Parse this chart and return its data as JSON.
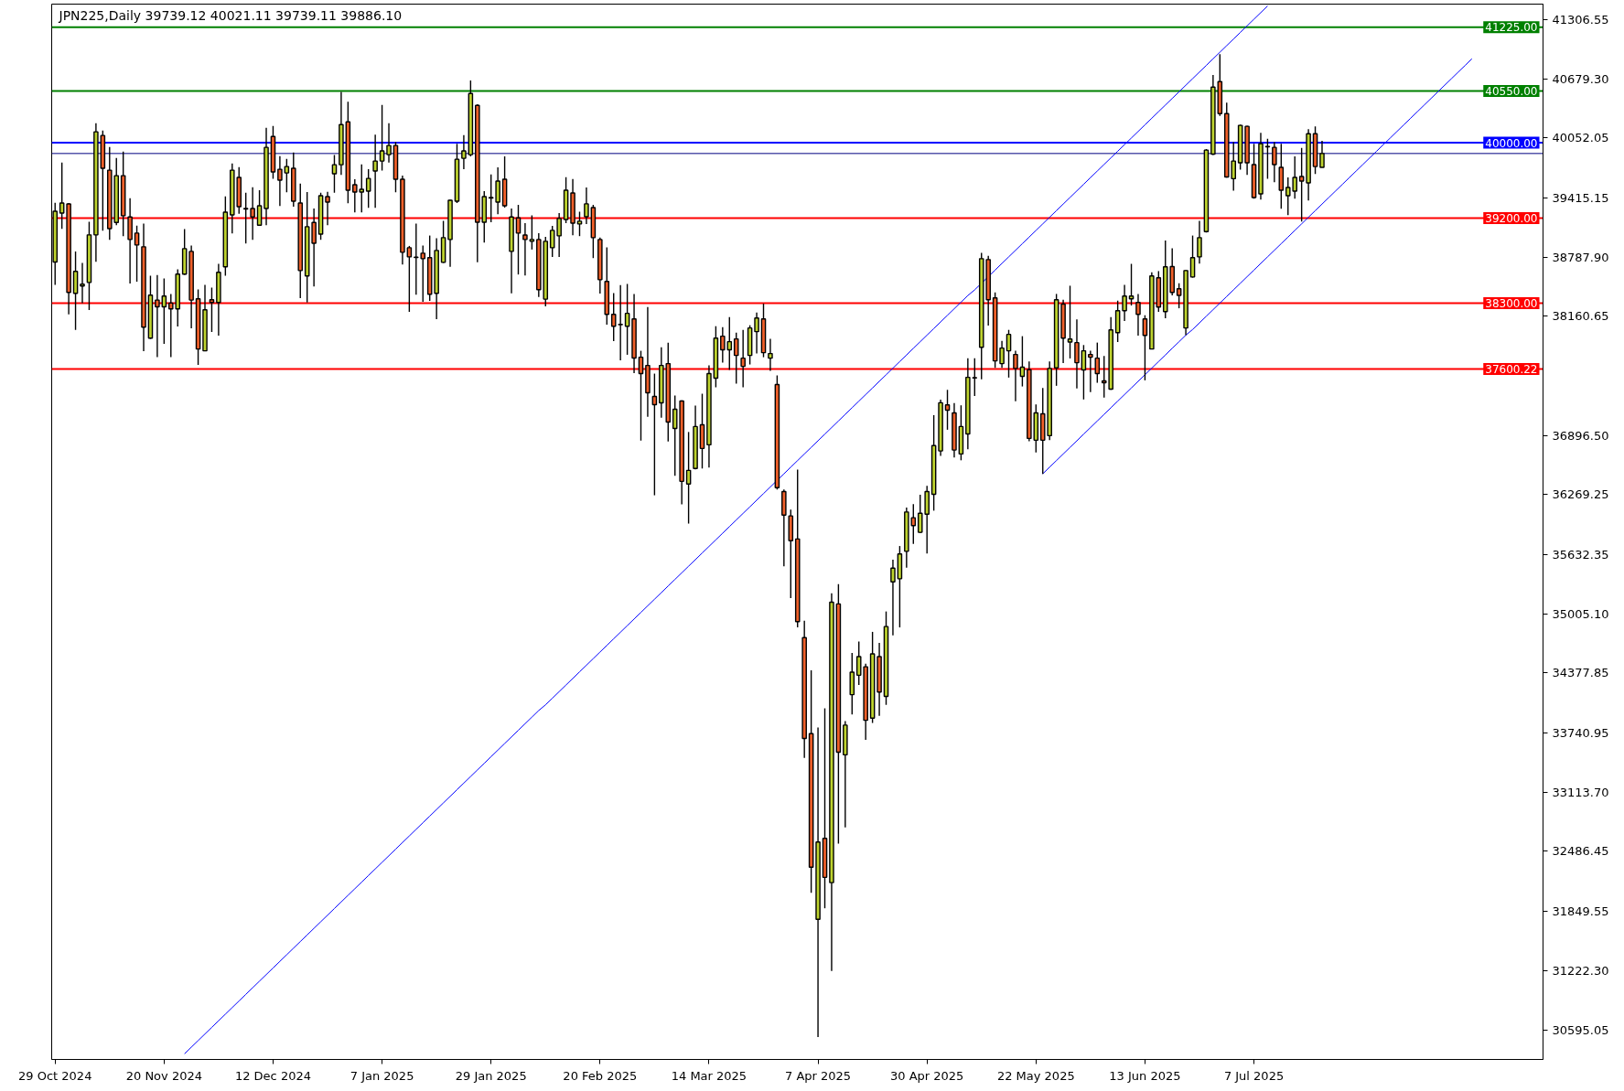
{
  "chart_data": {
    "type": "candlestick",
    "title": "JPN225,Daily 39739.12 40021.11 39739.11 39886.10",
    "categories": [
      "29 Oct 2024",
      null,
      null,
      null,
      null,
      null,
      null,
      null,
      null,
      null,
      null,
      null,
      null,
      null,
      null,
      null,
      "20 Nov 2024",
      null,
      null,
      null,
      null,
      null,
      null,
      null,
      null,
      null,
      null,
      null,
      null,
      null,
      null,
      null,
      "12 Dec 2024",
      null,
      null,
      null,
      null,
      null,
      null,
      null,
      null,
      null,
      null,
      null,
      null,
      null,
      null,
      null,
      "7 Jan 2025",
      null,
      null,
      null,
      null,
      null,
      null,
      null,
      null,
      null,
      null,
      null,
      null,
      null,
      null,
      null,
      "29 Jan 2025",
      null,
      null,
      null,
      null,
      null,
      null,
      null,
      null,
      null,
      null,
      null,
      null,
      null,
      null,
      null,
      "20 Feb 2025",
      null,
      null,
      null,
      null,
      null,
      null,
      null,
      null,
      null,
      null,
      null,
      null,
      null,
      null,
      null,
      "14 Mar 2025",
      null,
      null,
      null,
      null,
      null,
      null,
      null,
      null,
      null,
      null,
      null,
      null,
      null,
      null,
      null,
      "7 Apr 2025",
      null,
      null,
      null,
      null,
      null,
      null,
      null,
      null,
      null,
      null,
      null,
      null,
      null,
      null,
      null,
      "30 Apr 2025",
      null,
      null,
      null,
      null,
      null,
      null,
      null,
      null,
      null,
      null,
      null,
      null,
      null,
      null,
      null,
      "22 May 2025",
      null,
      null,
      null,
      null,
      null,
      null,
      null,
      null,
      null,
      null,
      null,
      null,
      null,
      null,
      null,
      "13 Jun 2025",
      null,
      null,
      null,
      null,
      null,
      null,
      null,
      null,
      null,
      null,
      null,
      null,
      null,
      null,
      null,
      "7 Jul 2025",
      null,
      null,
      null,
      null,
      null,
      null,
      null,
      null,
      null,
      null,
      null,
      null,
      null,
      null,
      null,
      null,
      null,
      null,
      null,
      null,
      null,
      null,
      null,
      null,
      null,
      null,
      null,
      null,
      null,
      null,
      null,
      null
    ],
    "ohlc": [
      [
        38735,
        39364,
        38493,
        39274
      ],
      [
        39255,
        39790,
        39087,
        39361
      ],
      [
        39351,
        39360,
        38181,
        38413
      ],
      [
        38403,
        38848,
        38016,
        38636
      ],
      [
        38481,
        38726,
        38300,
        38500
      ],
      [
        38519,
        39161,
        38226,
        39023
      ],
      [
        39023,
        40206,
        38739,
        40116
      ],
      [
        40077,
        40129,
        39068,
        39729
      ],
      [
        39709,
        39955,
        38971,
        39090
      ],
      [
        39155,
        39838,
        39126,
        39651
      ],
      [
        39651,
        39906,
        39010,
        39226
      ],
      [
        39213,
        39413,
        38507,
        38974
      ],
      [
        39042,
        39122,
        38526,
        38916
      ],
      [
        38897,
        39142,
        37791,
        38045
      ],
      [
        37929,
        38590,
        37920,
        38384
      ],
      [
        38332,
        38597,
        37726,
        38261
      ],
      [
        38261,
        38561,
        37868,
        38374
      ],
      [
        38300,
        38397,
        37726,
        38239
      ],
      [
        38239,
        38658,
        38052,
        38607
      ],
      [
        38607,
        39084,
        38600,
        38877
      ],
      [
        38848,
        38910,
        38032,
        38332
      ],
      [
        38345,
        38445,
        37645,
        37813
      ],
      [
        37794,
        38494,
        37790,
        38229
      ],
      [
        38336,
        38465,
        37994,
        38307
      ],
      [
        38307,
        38716,
        37955,
        38626
      ],
      [
        38684,
        39432,
        38590,
        39264
      ],
      [
        39235,
        39780,
        39039,
        39709
      ],
      [
        39632,
        39742,
        39248,
        39322
      ],
      [
        39303,
        39471,
        38932,
        39297
      ],
      [
        39303,
        39529,
        38971,
        39213
      ],
      [
        39126,
        39497,
        39120,
        39332
      ],
      [
        39303,
        40158,
        39126,
        39951
      ],
      [
        40067,
        40177,
        39619,
        39690
      ],
      [
        39719,
        39858,
        39329,
        39603
      ],
      [
        39680,
        39829,
        39474,
        39748
      ],
      [
        39729,
        39896,
        39322,
        39380
      ],
      [
        39361,
        39568,
        38352,
        38645
      ],
      [
        38587,
        39477,
        38307,
        39110
      ],
      [
        39155,
        39303,
        38477,
        38935
      ],
      [
        39032,
        39471,
        38971,
        39438
      ],
      [
        39429,
        39480,
        39126,
        39371
      ],
      [
        39671,
        39871,
        39471,
        39767
      ],
      [
        39767,
        40538,
        39658,
        40193
      ],
      [
        40222,
        40435,
        39358,
        39497
      ],
      [
        39555,
        39613,
        39261,
        39477
      ],
      [
        39477,
        39771,
        39261,
        39506
      ],
      [
        39487,
        39719,
        39310,
        39622
      ],
      [
        39700,
        40087,
        39310,
        39806
      ],
      [
        39806,
        40400,
        39706,
        39913
      ],
      [
        39874,
        40206,
        39790,
        39971
      ],
      [
        39971,
        40009,
        39474,
        39613
      ],
      [
        39613,
        39651,
        38710,
        38839
      ],
      [
        38887,
        38906,
        38207,
        38790
      ],
      [
        38787,
        39142,
        38390,
        38784
      ],
      [
        38829,
        38910,
        38313,
        38771
      ],
      [
        38781,
        39016,
        38323,
        38394
      ],
      [
        38403,
        38987,
        38129,
        38858
      ],
      [
        38732,
        39171,
        38725,
        38994
      ],
      [
        38974,
        39395,
        38684,
        39390
      ],
      [
        39380,
        39990,
        39361,
        39825
      ],
      [
        39835,
        40080,
        39719,
        39913
      ],
      [
        39874,
        40661,
        39855,
        40522
      ],
      [
        40396,
        40409,
        38732,
        39158
      ],
      [
        39158,
        39487,
        38942,
        39429
      ],
      [
        39419,
        39664,
        39158,
        39413
      ],
      [
        39371,
        39738,
        39242,
        39593
      ],
      [
        39613,
        39855,
        39313,
        39332
      ],
      [
        38848,
        39303,
        38403,
        39213
      ],
      [
        39203,
        39342,
        38603,
        39042
      ],
      [
        39022,
        39148,
        38593,
        38974
      ],
      [
        38955,
        39229,
        38868,
        38974
      ],
      [
        38974,
        39042,
        38364,
        38442
      ],
      [
        38342,
        39003,
        38265,
        38955
      ],
      [
        38887,
        39119,
        38790,
        39071
      ],
      [
        39013,
        39255,
        38790,
        39197
      ],
      [
        39187,
        39635,
        39148,
        39497
      ],
      [
        39468,
        39616,
        39019,
        39148
      ],
      [
        39139,
        39268,
        39010,
        39168
      ],
      [
        39216,
        39526,
        39139,
        39352
      ],
      [
        39313,
        39342,
        38777,
        38994
      ],
      [
        38974,
        38994,
        38400,
        38548
      ],
      [
        38529,
        38890,
        38071,
        38181
      ],
      [
        38181,
        38407,
        37897,
        38055
      ],
      [
        38074,
        38490,
        37694,
        38071
      ],
      [
        38055,
        38503,
        37752,
        38191
      ],
      [
        38132,
        38397,
        37558,
        37717
      ],
      [
        37726,
        37794,
        36842,
        37552
      ],
      [
        37639,
        38258,
        37094,
        37349
      ],
      [
        37310,
        37552,
        36262,
        37223
      ],
      [
        37242,
        37832,
        37084,
        37639
      ],
      [
        37658,
        37881,
        36833,
        37039
      ],
      [
        36971,
        37320,
        36468,
        37175
      ],
      [
        37262,
        37270,
        36165,
        36410
      ],
      [
        36381,
        36933,
        35962,
        36526
      ],
      [
        36546,
        37213,
        36536,
        36991
      ],
      [
        37010,
        37339,
        36546,
        36759
      ],
      [
        36797,
        37639,
        36555,
        37552
      ],
      [
        37504,
        38055,
        37407,
        37929
      ],
      [
        37949,
        38045,
        37668,
        37804
      ],
      [
        37804,
        38152,
        37591,
        37891
      ],
      [
        37920,
        37987,
        37446,
        37745
      ],
      [
        37716,
        38016,
        37407,
        37629
      ],
      [
        37745,
        38065,
        37649,
        38036
      ],
      [
        37997,
        38200,
        37765,
        38142
      ],
      [
        38132,
        38294,
        37726,
        37774
      ],
      [
        37716,
        37920,
        37581,
        37765
      ],
      [
        37436,
        37533,
        36323,
        36343
      ],
      [
        36301,
        36324,
        35508,
        36052
      ],
      [
        36043,
        36109,
        35171,
        35780
      ],
      [
        35799,
        36535,
        34861,
        34922
      ],
      [
        34753,
        34931,
        33477,
        33684
      ],
      [
        33735,
        34406,
        32047,
        32319
      ],
      [
        31766,
        33801,
        30518,
        32586
      ],
      [
        32624,
        34003,
        31883,
        32211
      ],
      [
        32155,
        35222,
        31217,
        35128
      ],
      [
        35110,
        35321,
        32568,
        33538
      ],
      [
        33510,
        33867,
        32741,
        33825
      ],
      [
        34148,
        34589,
        33937,
        34387
      ],
      [
        34354,
        34711,
        34251,
        34551
      ],
      [
        34444,
        34476,
        33670,
        33876
      ],
      [
        33900,
        34814,
        33848,
        34580
      ],
      [
        34551,
        34697,
        33923,
        34176
      ],
      [
        34129,
        35030,
        34040,
        34870
      ],
      [
        35344,
        35579,
        34777,
        35489
      ],
      [
        35377,
        35724,
        34861,
        35640
      ],
      [
        35668,
        36132,
        35494,
        36085
      ],
      [
        36024,
        36169,
        35747,
        35940
      ],
      [
        35869,
        36268,
        35860,
        36071
      ],
      [
        36062,
        36362,
        35644,
        36301
      ],
      [
        36273,
        37112,
        36099,
        36789
      ],
      [
        36732,
        37276,
        36681,
        37243
      ],
      [
        37220,
        37380,
        36957,
        37164
      ],
      [
        37136,
        37239,
        36662,
        36742
      ],
      [
        36700,
        37216,
        36633,
        36991
      ],
      [
        36913,
        37716,
        36749,
        37513
      ],
      [
        37510,
        37716,
        37316,
        37507
      ],
      [
        37832,
        38832,
        37491,
        38771
      ],
      [
        38761,
        38800,
        38061,
        38336
      ],
      [
        38355,
        38413,
        37613,
        37687
      ],
      [
        37658,
        37900,
        37613,
        37823
      ],
      [
        37794,
        38016,
        37510,
        37968
      ],
      [
        37755,
        37794,
        37258,
        37607
      ],
      [
        37523,
        37949,
        37416,
        37620
      ],
      [
        37594,
        37681,
        36836,
        36865
      ],
      [
        36846,
        37226,
        36717,
        37136
      ],
      [
        37126,
        37400,
        36488,
        36846
      ],
      [
        36894,
        37681,
        36846,
        37607
      ],
      [
        37613,
        38397,
        37423,
        38336
      ],
      [
        38290,
        38336,
        37665,
        37929
      ],
      [
        37887,
        38484,
        37713,
        37919
      ],
      [
        37881,
        38126,
        37394,
        37668
      ],
      [
        37591,
        37855,
        37278,
        37794
      ],
      [
        37755,
        37794,
        37355,
        37726
      ],
      [
        37716,
        37881,
        37455,
        37552
      ],
      [
        37475,
        37739,
        37297,
        37455
      ],
      [
        37387,
        38152,
        37380,
        38016
      ],
      [
        37987,
        38326,
        37887,
        38219
      ],
      [
        38219,
        38494,
        38110,
        38374
      ],
      [
        38345,
        38716,
        38274,
        38374
      ],
      [
        38307,
        38397,
        37955,
        38181
      ],
      [
        38132,
        38171,
        37481,
        37958
      ],
      [
        37813,
        38626,
        37810,
        38587
      ],
      [
        38568,
        38639,
        38207,
        38258
      ],
      [
        38210,
        38964,
        38139,
        38684
      ],
      [
        38687,
        38881,
        38381,
        38413
      ],
      [
        38452,
        38510,
        38245,
        38381
      ],
      [
        38036,
        38650,
        37961,
        38645
      ],
      [
        38577,
        39016,
        38570,
        38781
      ],
      [
        38790,
        39171,
        38719,
        38994
      ],
      [
        39058,
        39932,
        39048,
        39922
      ],
      [
        39880,
        40719,
        39870,
        40590
      ],
      [
        40648,
        40938,
        40284,
        40309
      ],
      [
        40309,
        40425,
        39630,
        39638
      ],
      [
        39619,
        40009,
        39493,
        39806
      ],
      [
        39787,
        40193,
        39716,
        40184
      ],
      [
        40174,
        40180,
        39658,
        39787
      ],
      [
        39768,
        39990,
        39406,
        39419
      ],
      [
        39458,
        40106,
        39397,
        39990
      ],
      [
        39961,
        40042,
        39619,
        39958
      ],
      [
        39951,
        40009,
        39581,
        39768
      ],
      [
        39739,
        39990,
        39300,
        39497
      ],
      [
        39439,
        39632,
        39232,
        39526
      ],
      [
        39487,
        39855,
        39406,
        39632
      ],
      [
        39642,
        39945,
        39164,
        39593
      ],
      [
        39574,
        40145,
        39387,
        40096
      ],
      [
        40096,
        40174,
        39668,
        39748
      ],
      [
        39739.12,
        40021.11,
        39739.11,
        39886.1
      ],
      null,
      null,
      null,
      null,
      null,
      null,
      null,
      null,
      null,
      null,
      null,
      null,
      null,
      null,
      null,
      null,
      null,
      null,
      null,
      null,
      null,
      null
    ],
    "colors": [
      "#bed32f",
      "#bed32f",
      "#f0602a",
      "#bed32f",
      "#bed32f",
      "#bed32f",
      "#bed32f",
      "#f0602a",
      "#f0602a",
      "#bed32f",
      "#f0602a",
      "#f0602a",
      "#f0602a",
      "#f0602a",
      "#bed32f",
      "#f0602a",
      "#bed32f",
      "#f0602a",
      "#bed32f",
      "#bed32f",
      "#f0602a",
      "#f0602a",
      "#bed32f",
      "#f0602a",
      "#bed32f",
      "#bed32f",
      "#bed32f",
      "#f0602a",
      "#f0602a",
      "#f0602a",
      "#bed32f",
      "#bed32f",
      "#f0602a",
      "#f0602a",
      "#bed32f",
      "#f0602a",
      "#f0602a",
      "#bed32f",
      "#f0602a",
      "#bed32f",
      "#f0602a",
      "#bed32f",
      "#bed32f",
      "#f0602a",
      "#f0602a",
      "#bed32f",
      "#bed32f",
      "#bed32f",
      "#bed32f",
      "#bed32f",
      "#f0602a",
      "#f0602a",
      "#f0602a",
      "#f0602a",
      "#f0602a",
      "#f0602a",
      "#bed32f",
      "#bed32f",
      "#bed32f",
      "#bed32f",
      "#bed32f",
      "#bed32f",
      "#f0602a",
      "#bed32f",
      "#f0602a",
      "#bed32f",
      "#f0602a",
      "#bed32f",
      "#f0602a",
      "#f0602a",
      "#bed32f",
      "#f0602a",
      "#bed32f",
      "#bed32f",
      "#bed32f",
      "#bed32f",
      "#f0602a",
      "#bed32f",
      "#bed32f",
      "#f0602a",
      "#f0602a",
      "#f0602a",
      "#f0602a",
      "#f0602a",
      "#bed32f",
      "#f0602a",
      "#f0602a",
      "#f0602a",
      "#f0602a",
      "#bed32f",
      "#f0602a",
      "#bed32f",
      "#f0602a",
      "#bed32f",
      "#bed32f",
      "#f0602a",
      "#bed32f",
      "#bed32f",
      "#f0602a",
      "#bed32f",
      "#f0602a",
      "#f0602a",
      "#bed32f",
      "#bed32f",
      "#f0602a",
      "#bed32f",
      "#f0602a",
      "#f0602a",
      "#f0602a",
      "#f0602a",
      "#f0602a",
      "#f0602a",
      "#bed32f",
      "#f0602a",
      "#bed32f",
      "#f0602a",
      "#bed32f",
      "#bed32f",
      "#bed32f",
      "#f0602a",
      "#bed32f",
      "#f0602a",
      "#bed32f",
      "#bed32f",
      "#bed32f",
      "#bed32f",
      "#f0602a",
      "#bed32f",
      "#bed32f",
      "#bed32f",
      "#bed32f",
      "#f0602a",
      "#f0602a",
      "#bed32f",
      "#bed32f",
      "#f0602a",
      "#bed32f",
      "#f0602a",
      "#f0602a",
      "#bed32f",
      "#bed32f",
      "#f0602a",
      "#bed32f",
      "#f0602a",
      "#bed32f",
      "#f0602a",
      "#bed32f",
      "#bed32f",
      "#f0602a",
      "#bed32f",
      "#f0602a",
      "#bed32f",
      "#f0602a",
      "#f0602a",
      "#f0602a",
      "#bed32f",
      "#bed32f",
      "#bed32f",
      "#bed32f",
      "#f0602a",
      "#f0602a",
      "#bed32f",
      "#f0602a",
      "#bed32f",
      "#f0602a",
      "#f0602a",
      "#bed32f",
      "#bed32f",
      "#bed32f",
      "#bed32f",
      "#bed32f",
      "#f0602a",
      "#f0602a",
      "#bed32f",
      "#bed32f",
      "#f0602a",
      "#f0602a",
      "#bed32f",
      "#f0602a",
      "#f0602a",
      "#f0602a",
      "#bed32f",
      "#bed32f",
      "#f0602a",
      "#bed32f",
      "#f0602a",
      "#bed32f",
      null,
      null,
      null,
      null,
      null,
      null,
      null,
      null,
      null,
      null,
      null,
      null,
      null,
      null,
      null,
      null,
      null,
      null,
      null,
      null,
      null,
      null
    ],
    "series": [
      {
        "type": "line",
        "color": "#0000ff",
        "values": [
          null,
          null,
          null,
          null,
          null,
          null,
          null,
          null,
          null,
          null,
          null,
          null,
          null,
          null,
          null,
          null,
          null,
          null,
          null,
          30340,
          30410,
          30480,
          30550,
          30620,
          30690,
          30760,
          30830,
          30900,
          30970,
          31040,
          31110,
          31180,
          31250,
          31320,
          31390,
          31460,
          31530,
          31600,
          31670,
          31740,
          31810,
          31880,
          31950,
          32020,
          32090,
          32160,
          32230,
          32300,
          32370,
          32440,
          32510,
          32580,
          32650,
          32720,
          32790,
          32860,
          32930,
          33000,
          33070,
          33140,
          33210,
          33280,
          33350,
          33420,
          33490,
          33560,
          33630,
          33700,
          33770,
          33840,
          33910,
          33980,
          34040,
          34110,
          34180,
          34250,
          34320,
          34390,
          34460,
          34530,
          34600,
          34670,
          34740,
          34810,
          34880,
          34950,
          35020,
          35090,
          35160,
          35230,
          35300,
          35370,
          35440,
          35510,
          35580,
          35650,
          35720,
          35790,
          35860,
          35930,
          36000,
          36070,
          36140,
          36210,
          36280,
          36350,
          36420,
          36490,
          36560,
          36630,
          36700,
          36770,
          36840,
          36910,
          36980,
          37050,
          37120,
          37190,
          37260,
          37330,
          37400,
          37470,
          37540,
          37610,
          37680,
          37750,
          37820,
          37890,
          37960,
          38030,
          38100,
          38170,
          38240,
          38310,
          38380,
          38440,
          38510,
          38580,
          38650,
          38720,
          38790,
          38860,
          38930,
          39000,
          39070,
          39140,
          39210,
          39280,
          39350,
          39420,
          39490,
          39560,
          39630,
          39700,
          39770,
          39840,
          39910,
          39980,
          40050,
          40120,
          40190,
          40260,
          40330,
          40400,
          40470,
          40540,
          40610,
          40680,
          40750,
          40820,
          40890,
          40960,
          41030,
          41100,
          41170,
          41240,
          41310,
          41380,
          41450,
          null,
          null,
          null,
          null,
          null,
          null,
          null,
          null,
          null,
          null,
          null,
          null,
          null,
          null,
          null,
          null,
          null,
          null,
          null,
          null,
          null,
          null,
          null,
          null,
          null,
          null,
          null,
          null,
          null,
          null
        ]
      },
      {
        "type": "line",
        "color": "#0000ff",
        "values": [
          null,
          null,
          null,
          null,
          null,
          null,
          null,
          null,
          null,
          null,
          null,
          null,
          null,
          null,
          null,
          null,
          null,
          null,
          null,
          null,
          null,
          null,
          null,
          null,
          null,
          null,
          null,
          null,
          null,
          null,
          null,
          null,
          null,
          null,
          null,
          null,
          null,
          null,
          null,
          null,
          null,
          null,
          null,
          null,
          null,
          null,
          null,
          null,
          null,
          null,
          null,
          null,
          null,
          null,
          null,
          null,
          null,
          null,
          null,
          null,
          null,
          null,
          null,
          null,
          null,
          null,
          null,
          null,
          null,
          null,
          null,
          null,
          null,
          null,
          null,
          null,
          null,
          null,
          null,
          null,
          null,
          null,
          null,
          null,
          null,
          null,
          null,
          null,
          null,
          null,
          null,
          null,
          null,
          null,
          null,
          null,
          null,
          null,
          null,
          null,
          null,
          null,
          null,
          null,
          null,
          null,
          null,
          null,
          null,
          null,
          null,
          null,
          null,
          null,
          null,
          null,
          null,
          null,
          null,
          null,
          null,
          null,
          null,
          null,
          null,
          null,
          null,
          null,
          null,
          null,
          null,
          null,
          null,
          null,
          null,
          null,
          null,
          null,
          null,
          null,
          null,
          null,
          null,
          null,
          null,
          36490,
          36560,
          36630,
          36700,
          36770,
          36840,
          36910,
          36980,
          37050,
          37120,
          37190,
          37260,
          37330,
          37400,
          37470,
          37540,
          37610,
          37680,
          37750,
          37820,
          37890,
          37960,
          38020,
          38090,
          38160,
          38230,
          38300,
          38370,
          38440,
          38510,
          38580,
          38650,
          38720,
          38790,
          38860,
          38930,
          39000,
          39070,
          39140,
          39210,
          39280,
          39350,
          39420,
          39490,
          39560,
          39630,
          39700,
          39770,
          39840,
          39910,
          39980,
          40050,
          40120,
          40190,
          40260,
          40330,
          40400,
          40470,
          40540,
          40610,
          40680,
          40750,
          40820,
          40890
        ]
      }
    ],
    "ylim": [
      30280,
      41470
    ],
    "yticks": [
      30595.05,
      {
        "value": 31222.3,
        "label": "31222.30"
      },
      31849.55,
      32486.45,
      {
        "value": 33113.7,
        "label": "33113.70"
      },
      33740.95,
      34377.85,
      {
        "value": 35005.1,
        "label": "35005.10"
      },
      35632.35,
      36269.25,
      {
        "value": 36896.5,
        "label": "36896.50"
      },
      38160.65,
      {
        "value": 38787.9,
        "label": "38787.90"
      },
      39415.15,
      40052.05,
      {
        "value": 40679.3,
        "label": "40679.30"
      },
      41306.55
    ],
    "ref_lines": [
      {
        "axis": "y",
        "value": 41225,
        "label": "41225.00",
        "color": "#008000"
      },
      {
        "axis": "y",
        "value": 40550,
        "label": "40550.00",
        "color": "#008000"
      },
      {
        "axis": "y",
        "value": 40000,
        "label": "40000.00",
        "color": "#0000ff"
      },
      {
        "axis": "y",
        "value": 39886.1,
        "color": "#000080"
      },
      {
        "axis": "y",
        "value": 39200,
        "label": "39200.00",
        "color": "#ff0000"
      },
      {
        "axis": "y",
        "value": 38300,
        "label": "38300.00",
        "color": "#ff0000"
      },
      {
        "axis": "y",
        "value": 37600.22,
        "label": "37600.22",
        "color": "#ff0000"
      }
    ],
    "grid": false
  }
}
